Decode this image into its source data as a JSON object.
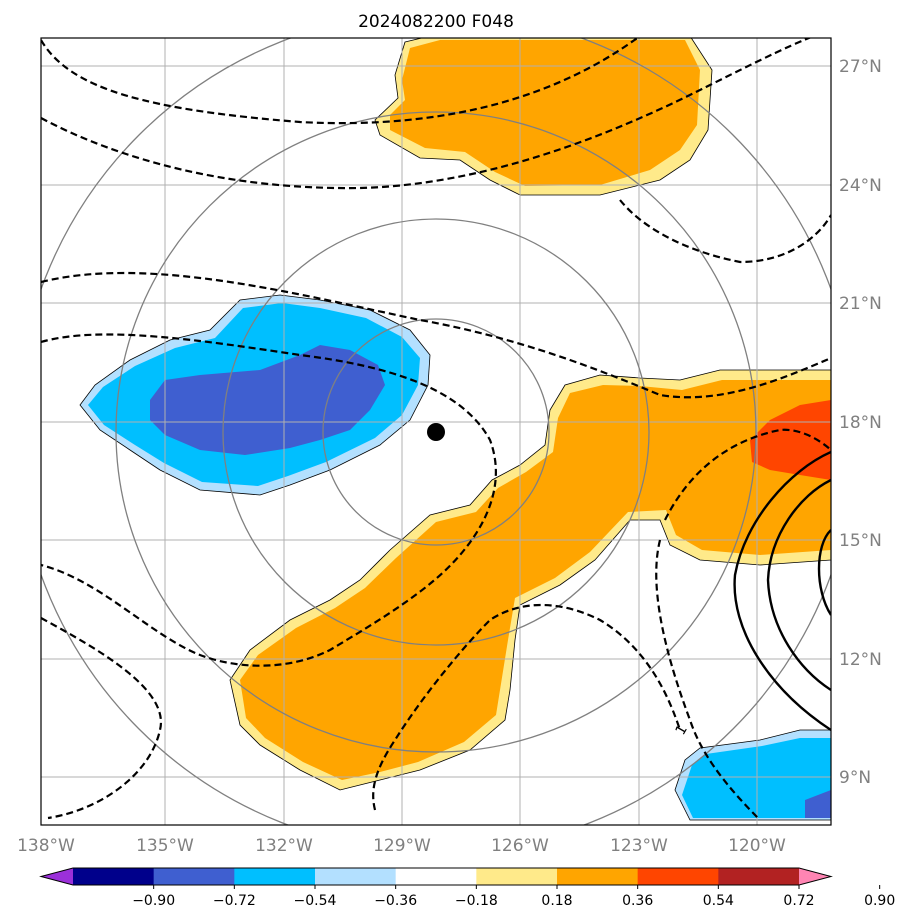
{
  "title": "2024082200 F048",
  "map": {
    "lon_labels": [
      "138°W",
      "135°W",
      "132°W",
      "129°W",
      "126°W",
      "123°W",
      "120°W"
    ],
    "lat_labels": [
      "27°N",
      "24°N",
      "21°N",
      "18°N",
      "15°N",
      "12°N",
      "9°N"
    ],
    "contour_label": "1"
  },
  "colorbar": {
    "tick_labels": [
      "−0.90",
      "−0.72",
      "−0.54",
      "−0.36",
      "−0.18",
      "0.18",
      "0.36",
      "0.54",
      "0.72",
      "0.90"
    ],
    "colors": [
      "#9b30d9",
      "#00008b",
      "#3f5fd0",
      "#00bfff",
      "#b3e0ff",
      "#ffffff",
      "#ffea8a",
      "#ffa500",
      "#ff4500",
      "#b22222",
      "#ff85b3"
    ]
  },
  "colors": {
    "gridline": "#b0b0b0",
    "range_ring": "#808080",
    "storm_center": "#000000"
  }
}
